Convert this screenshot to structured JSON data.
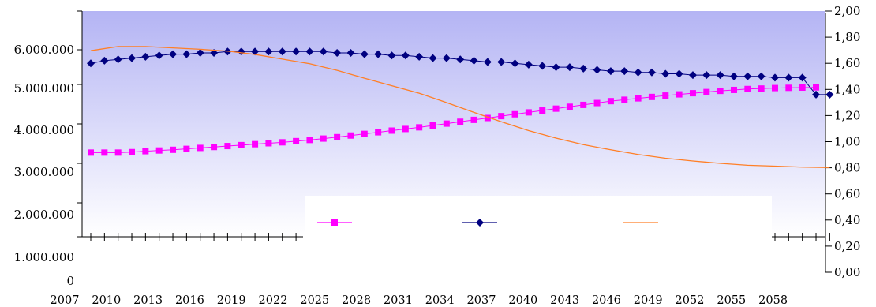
{
  "chart_data": {
    "type": "line",
    "title": "",
    "xlabel": "",
    "ylabel": "",
    "y2label": "",
    "x_tick_labels": [
      "2007",
      "2010",
      "2013",
      "2016",
      "2019",
      "2022",
      "2025",
      "2028",
      "2031",
      "2034",
      "2037",
      "2040",
      "2043",
      "2046",
      "2049",
      "2052",
      "2055",
      "2058"
    ],
    "y_left_tick_labels": [
      "0",
      "1.000.000",
      "2.000.000",
      "3.000.000",
      "4.000.000",
      "5.000.000",
      "6.000.000"
    ],
    "y_right_tick_labels": [
      "0,00",
      "0,20",
      "0,40",
      "0,60",
      "0,80",
      "1,00",
      "1,20",
      "1,40",
      "1,60",
      "1,80",
      "2,00"
    ],
    "ylim_left": [
      0,
      7000000
    ],
    "ylim_right": [
      0,
      2.0
    ],
    "xlim": [
      2007,
      2061
    ],
    "legend": {
      "placement": "bottom-center",
      "entries": [
        "",
        "",
        ""
      ]
    },
    "series": [
      {
        "axis": "left",
        "color": "#ff00ff",
        "marker": "square",
        "x": [
          2007,
          2008,
          2009,
          2010,
          2011,
          2012,
          2013,
          2014,
          2015,
          2016,
          2017,
          2018,
          2019,
          2020,
          2021,
          2022,
          2023,
          2024,
          2025,
          2026,
          2027,
          2028,
          2029,
          2030,
          2031,
          2032,
          2033,
          2034,
          2035,
          2036,
          2037,
          2038,
          2039,
          2040,
          2041,
          2042,
          2043,
          2044,
          2045,
          2046,
          2047,
          2048,
          2049,
          2050,
          2051,
          2052,
          2053,
          2054,
          2055,
          2056,
          2057,
          2058,
          2059,
          2060
        ],
        "values": [
          3800000,
          3800000,
          3800000,
          3810000,
          3830000,
          3845000,
          3860000,
          3880000,
          3900000,
          3920000,
          3940000,
          3960000,
          3980000,
          4000000,
          4020000,
          4045000,
          4070000,
          4100000,
          4130000,
          4165000,
          4200000,
          4235000,
          4270000,
          4305000,
          4340000,
          4380000,
          4420000,
          4460000,
          4500000,
          4540000,
          4580000,
          4620000,
          4660000,
          4700000,
          4740000,
          4780000,
          4820000,
          4860000,
          4900000,
          4930000,
          4960000,
          4990000,
          5020000,
          5045000,
          5070000,
          5095000,
          5120000,
          5140000,
          5160000,
          5170000,
          5180000,
          5185000,
          5190000,
          5195000
        ]
      },
      {
        "axis": "right",
        "color": "#000080",
        "marker": "diamond",
        "x": [
          2007,
          2008,
          2009,
          2010,
          2011,
          2012,
          2013,
          2014,
          2015,
          2016,
          2017,
          2018,
          2019,
          2020,
          2021,
          2022,
          2023,
          2024,
          2025,
          2026,
          2027,
          2028,
          2029,
          2030,
          2031,
          2032,
          2033,
          2034,
          2035,
          2036,
          2037,
          2038,
          2039,
          2040,
          2041,
          2042,
          2043,
          2044,
          2045,
          2046,
          2047,
          2048,
          2049,
          2050,
          2051,
          2052,
          2053,
          2054,
          2055,
          2056,
          2057,
          2058,
          2059,
          2060,
          2061
        ],
        "values": [
          1.6,
          1.62,
          1.63,
          1.64,
          1.65,
          1.66,
          1.67,
          1.67,
          1.68,
          1.68,
          1.69,
          1.69,
          1.69,
          1.69,
          1.69,
          1.69,
          1.69,
          1.69,
          1.68,
          1.68,
          1.67,
          1.67,
          1.66,
          1.66,
          1.65,
          1.64,
          1.64,
          1.63,
          1.62,
          1.61,
          1.61,
          1.6,
          1.59,
          1.58,
          1.57,
          1.57,
          1.56,
          1.55,
          1.54,
          1.54,
          1.53,
          1.53,
          1.52,
          1.52,
          1.51,
          1.51,
          1.51,
          1.5,
          1.5,
          1.5,
          1.49,
          1.49,
          1.49,
          1.36,
          1.36
        ]
      },
      {
        "axis": "left",
        "color": "#ff7f27",
        "marker": "none",
        "x": [
          2007,
          2009,
          2011,
          2013,
          2015,
          2017,
          2019,
          2021,
          2023,
          2025,
          2027,
          2029,
          2031,
          2033,
          2035,
          2037,
          2039,
          2041,
          2043,
          2045,
          2047,
          2049,
          2051,
          2053,
          2055,
          2057,
          2059,
          2061
        ],
        "values": [
          5980000,
          6070000,
          6070000,
          6040000,
          6010000,
          5970000,
          5900000,
          5800000,
          5700000,
          5560000,
          5390000,
          5230000,
          5070000,
          4870000,
          4660000,
          4460000,
          4270000,
          4110000,
          3970000,
          3860000,
          3760000,
          3680000,
          3620000,
          3570000,
          3530000,
          3510000,
          3490000,
          3480000
        ]
      }
    ]
  }
}
